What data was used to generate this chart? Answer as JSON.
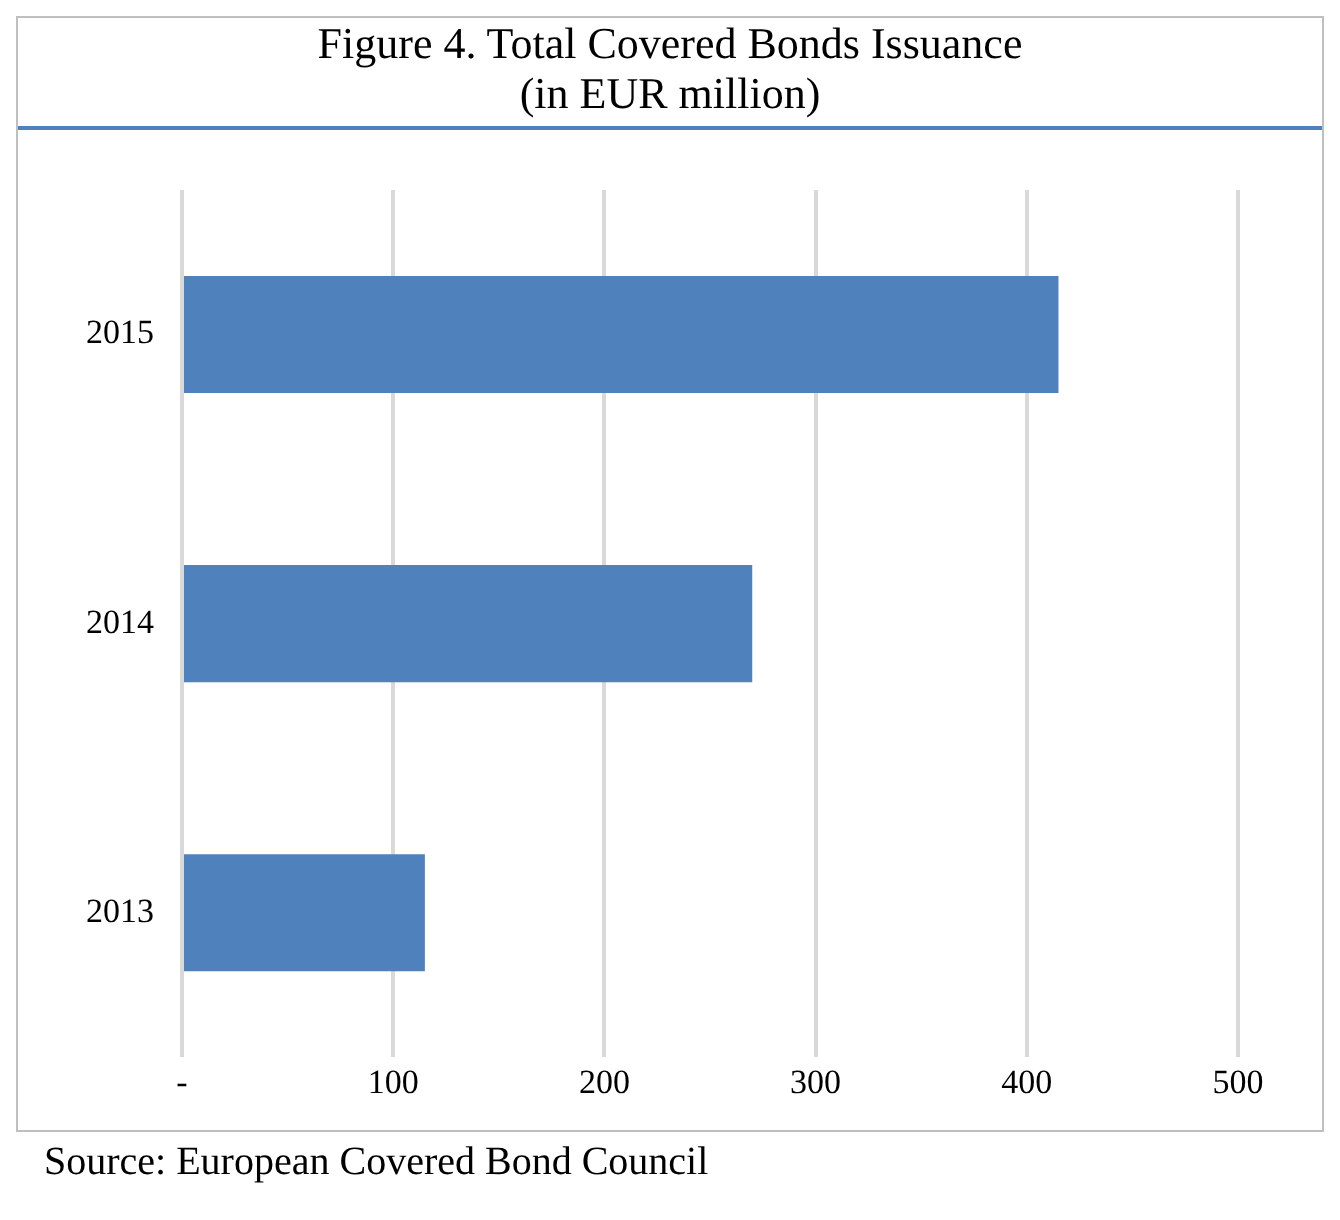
{
  "chart_data": {
    "type": "bar",
    "orientation": "horizontal",
    "title": "Figure 4. Total Covered Bonds Issuance\n(in EUR million)",
    "categories": [
      "2015",
      "2014",
      "2013"
    ],
    "values": [
      415,
      270,
      115
    ],
    "color": "#4f81bd",
    "xlim": [
      0,
      500
    ],
    "xticks": [
      {
        "value": 0,
        "label": "-"
      },
      100,
      200,
      300,
      400,
      500
    ],
    "grid": "x",
    "legend": false,
    "annotations": [
      "Source: European Covered Bond Council"
    ]
  }
}
